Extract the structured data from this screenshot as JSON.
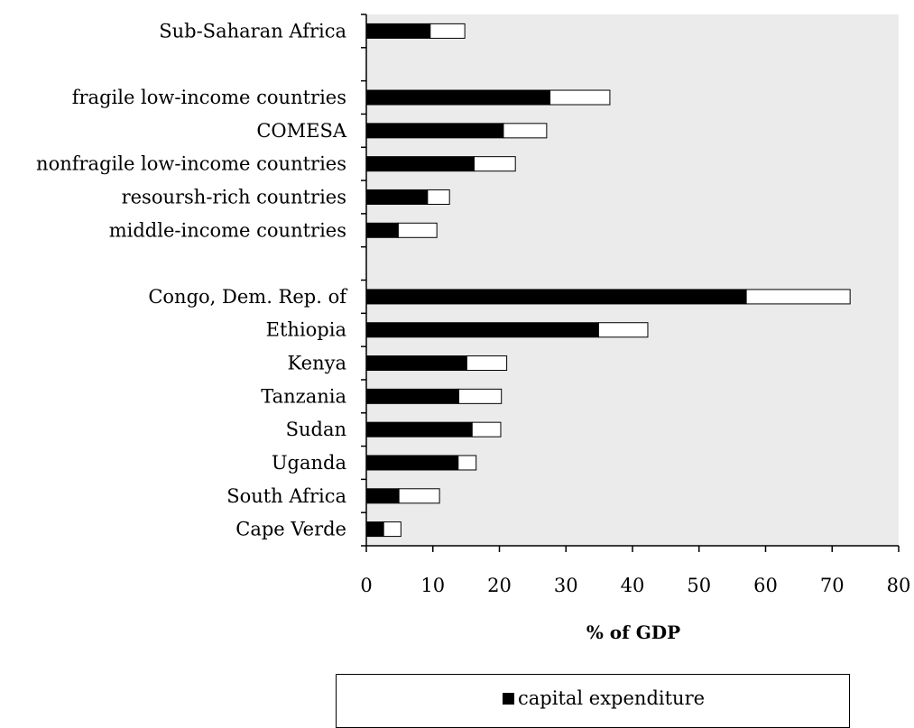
{
  "chart_data": {
    "type": "bar",
    "orientation": "horizontal",
    "stacked": true,
    "categories": [
      "Sub-Saharan Africa",
      "",
      "fragile low-income countries",
      "COMESA",
      "nonfragile low-income countries",
      "resoursh-rich countries",
      "middle-income countries",
      "",
      "Congo, Dem. Rep. of",
      "Ethiopia",
      "Kenya",
      "Tanzania",
      "Sudan",
      "Uganda",
      "South Africa",
      "Cape Verde"
    ],
    "series": [
      {
        "name": "capital expenditure",
        "color": "#000000",
        "values": [
          9.6,
          null,
          27.6,
          20.6,
          16.2,
          9.2,
          4.8,
          null,
          57.1,
          34.9,
          15.1,
          13.9,
          15.9,
          13.8,
          4.9,
          2.6
        ]
      },
      {
        "color": "#ffffff",
        "values": [
          5.2,
          null,
          9.0,
          6.5,
          6.2,
          3.3,
          5.8,
          null,
          15.6,
          7.4,
          6.0,
          6.4,
          4.3,
          2.7,
          6.1,
          2.6
        ]
      }
    ],
    "xlim": [
      0,
      80
    ],
    "xticks": [
      0,
      10,
      20,
      30,
      40,
      50,
      60,
      70,
      80
    ],
    "xlabel": "% of GDP",
    "ylabel": "",
    "title": "",
    "grid": false,
    "plot_background": "#ebebeb",
    "legend_position": "bottom"
  }
}
